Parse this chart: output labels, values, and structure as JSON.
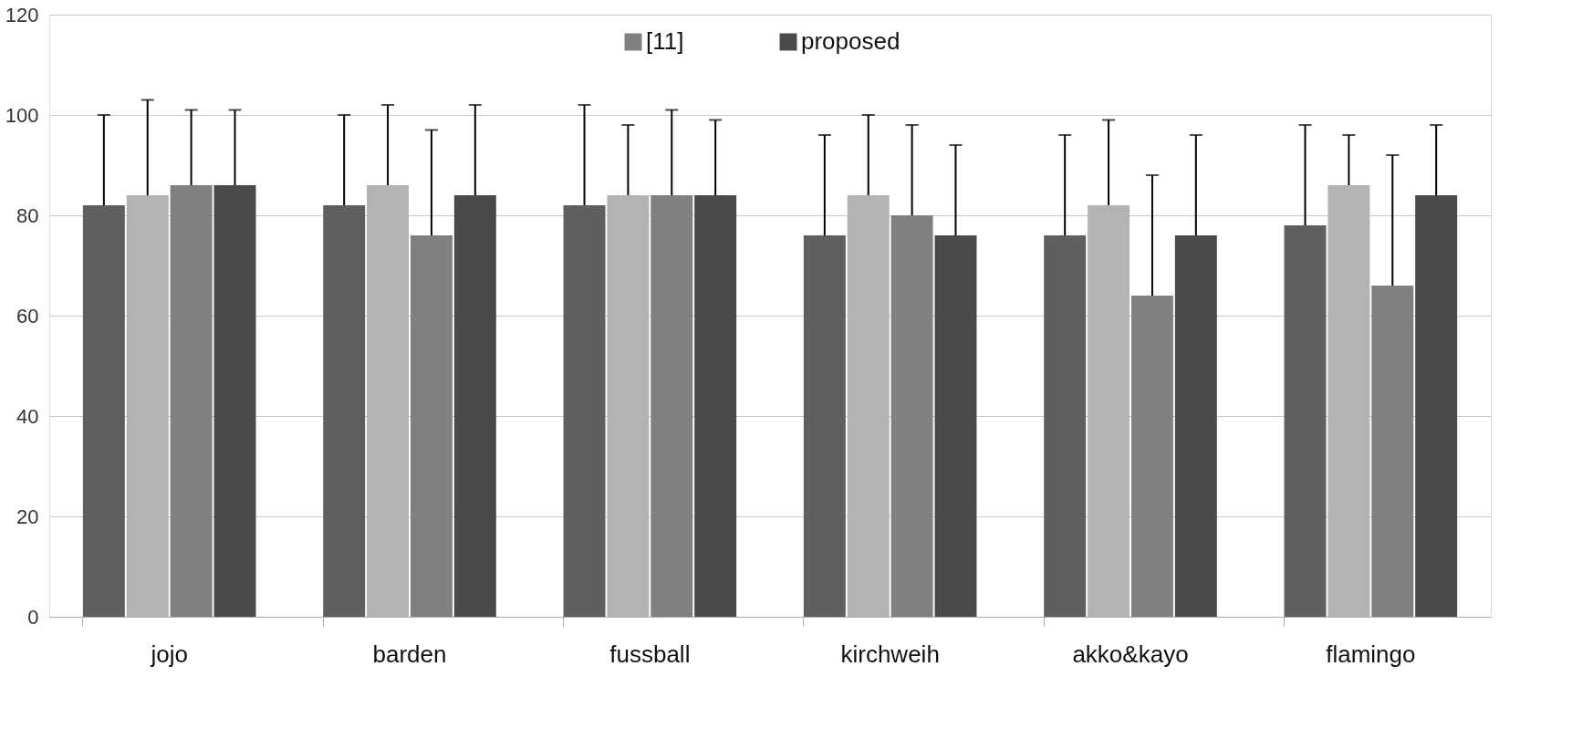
{
  "chart_data": {
    "type": "bar",
    "categories": [
      "jojo",
      "barden",
      "fussball",
      "kirchweih",
      "akko&kayo",
      "flamingo"
    ],
    "series": [
      {
        "color": "#5f5f5f",
        "values": [
          82,
          82,
          82,
          76,
          76,
          78
        ],
        "errors": [
          18,
          18,
          20,
          20,
          20,
          20
        ]
      },
      {
        "color": "#b3b3b3",
        "values": [
          84,
          86,
          84,
          84,
          82,
          86
        ],
        "errors": [
          19,
          16,
          14,
          16,
          17,
          10
        ]
      },
      {
        "name": "[11]",
        "color": "#808080",
        "values": [
          86,
          76,
          84,
          80,
          64,
          66
        ],
        "errors": [
          15,
          21,
          17,
          18,
          24,
          26
        ]
      },
      {
        "name": "proposed",
        "color": "#4a4a4a",
        "values": [
          86,
          84,
          84,
          76,
          76,
          84
        ],
        "errors": [
          15,
          18,
          15,
          18,
          20,
          14
        ]
      }
    ],
    "ylim": [
      0,
      120
    ],
    "yticks": [
      0,
      20,
      40,
      60,
      80,
      100,
      120
    ],
    "grid": "y",
    "legend": "top"
  }
}
